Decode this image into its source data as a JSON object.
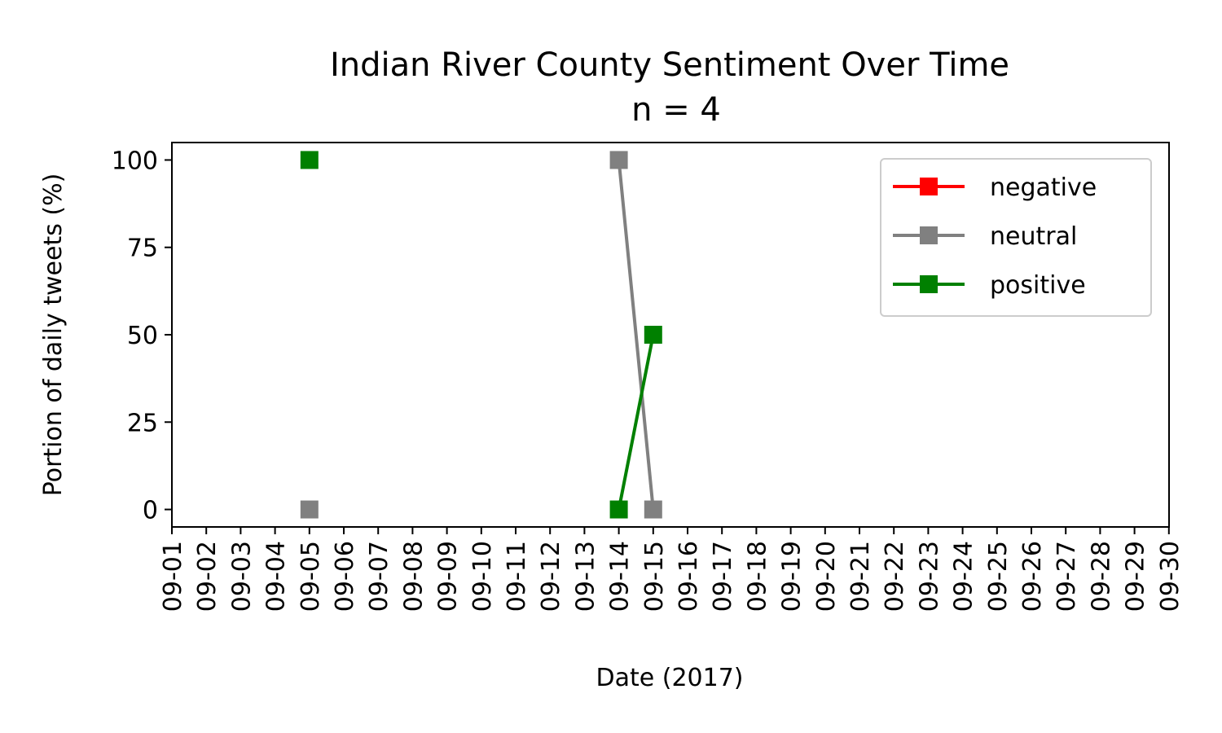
{
  "chart_data": {
    "type": "line",
    "title": "Indian River County Sentiment Over Time",
    "subtitle": "n = 4",
    "xlabel": "Date (2017)",
    "ylabel": "Portion of daily tweets (%)",
    "categories": [
      "09-01",
      "09-02",
      "09-03",
      "09-04",
      "09-05",
      "09-06",
      "09-07",
      "09-08",
      "09-09",
      "09-10",
      "09-11",
      "09-12",
      "09-13",
      "09-14",
      "09-15",
      "09-16",
      "09-17",
      "09-18",
      "09-19",
      "09-20",
      "09-21",
      "09-22",
      "09-23",
      "09-24",
      "09-25",
      "09-26",
      "09-27",
      "09-28",
      "09-29",
      "09-30"
    ],
    "yticks": [
      0,
      25,
      50,
      75,
      100
    ],
    "ylim": [
      -5,
      105
    ],
    "grid": false,
    "legend_position": "top-right",
    "series": [
      {
        "name": "negative",
        "color": "#ff0000",
        "points": []
      },
      {
        "name": "neutral",
        "color": "#808080",
        "points": [
          {
            "x": "09-05",
            "y": 0
          },
          {
            "x": "09-14",
            "y": 100
          },
          {
            "x": "09-15",
            "y": 0
          }
        ],
        "connected": [
          [
            1,
            2
          ]
        ]
      },
      {
        "name": "positive",
        "color": "#008000",
        "points": [
          {
            "x": "09-05",
            "y": 100
          },
          {
            "x": "09-14",
            "y": 0
          },
          {
            "x": "09-15",
            "y": 50
          }
        ],
        "connected": [
          [
            1,
            2
          ]
        ]
      }
    ]
  }
}
